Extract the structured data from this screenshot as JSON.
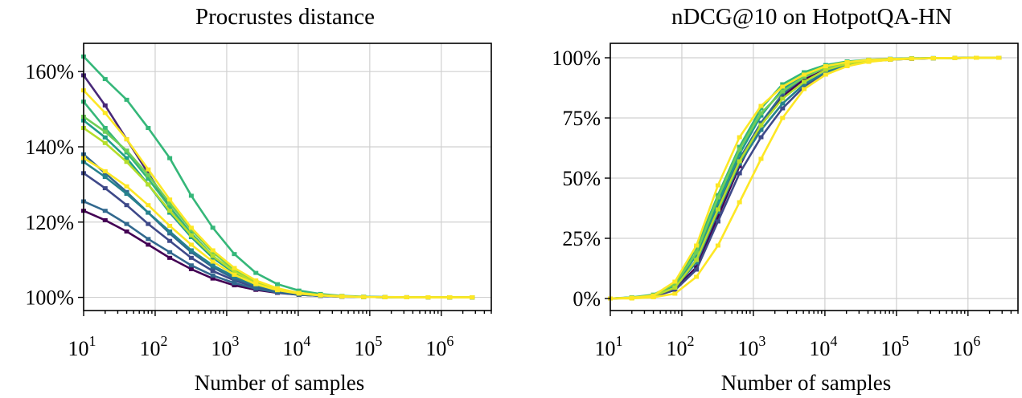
{
  "chart_data": [
    {
      "type": "line",
      "title": "Procrustes distance",
      "xlabel": "Number of samples",
      "ylabel": "",
      "xscale": "log",
      "xlim": [
        10,
        5000000
      ],
      "ylim": [
        0.965,
        1.675
      ],
      "xticks": [
        {
          "base": "10",
          "exp": "1",
          "value": 10
        },
        {
          "base": "10",
          "exp": "2",
          "value": 100
        },
        {
          "base": "10",
          "exp": "3",
          "value": 1000
        },
        {
          "base": "10",
          "exp": "4",
          "value": 10000
        },
        {
          "base": "10",
          "exp": "5",
          "value": 100000
        },
        {
          "base": "10",
          "exp": "6",
          "value": 1000000
        }
      ],
      "yticks": [
        {
          "label": "100%",
          "value": 1.0
        },
        {
          "label": "120%",
          "value": 1.2
        },
        {
          "label": "140%",
          "value": 1.4
        },
        {
          "label": "160%",
          "value": 1.6
        }
      ],
      "grid": true,
      "x": [
        10,
        20,
        40,
        80,
        160,
        320,
        640,
        1280,
        2560,
        5120,
        10240,
        20480,
        40960,
        81920,
        163840,
        327680,
        655360,
        1310720,
        2700000
      ],
      "series": [
        {
          "color": "#440154",
          "values": [
            1.23,
            1.205,
            1.175,
            1.14,
            1.105,
            1.075,
            1.05,
            1.032,
            1.02,
            1.012,
            1.007,
            1.004,
            1.002,
            1.001,
            1.0005,
            1.0002,
            1.0001,
            1.0,
            1.0
          ]
        },
        {
          "color": "#482878",
          "values": [
            1.59,
            1.51,
            1.42,
            1.33,
            1.24,
            1.17,
            1.11,
            1.065,
            1.035,
            1.018,
            1.009,
            1.005,
            1.002,
            1.001,
            1.0005,
            1.0002,
            1.0001,
            1.0,
            1.0
          ]
        },
        {
          "color": "#3e4989",
          "values": [
            1.33,
            1.29,
            1.245,
            1.195,
            1.15,
            1.105,
            1.07,
            1.045,
            1.027,
            1.015,
            1.008,
            1.004,
            1.002,
            1.001,
            1.0005,
            1.0002,
            1.0001,
            1.0,
            1.0
          ]
        },
        {
          "color": "#31688e",
          "values": [
            1.255,
            1.23,
            1.195,
            1.155,
            1.12,
            1.085,
            1.058,
            1.038,
            1.023,
            1.013,
            1.007,
            1.004,
            1.002,
            1.001,
            1.0005,
            1.0002,
            1.0001,
            1.0,
            1.0
          ]
        },
        {
          "color": "#31688e",
          "values": [
            1.38,
            1.33,
            1.28,
            1.225,
            1.17,
            1.12,
            1.08,
            1.05,
            1.03,
            1.017,
            1.009,
            1.005,
            1.002,
            1.001,
            1.0005,
            1.0002,
            1.0001,
            1.0,
            1.0
          ]
        },
        {
          "color": "#26828e",
          "values": [
            1.36,
            1.32,
            1.275,
            1.225,
            1.175,
            1.125,
            1.085,
            1.055,
            1.033,
            1.019,
            1.01,
            1.005,
            1.003,
            1.001,
            1.0005,
            1.0002,
            1.0001,
            1.0,
            1.0
          ]
        },
        {
          "color": "#1f9e89",
          "values": [
            1.47,
            1.425,
            1.37,
            1.3,
            1.225,
            1.16,
            1.105,
            1.065,
            1.037,
            1.02,
            1.01,
            1.005,
            1.003,
            1.001,
            1.0005,
            1.0002,
            1.0001,
            1.0,
            1.0
          ]
        },
        {
          "color": "#35b779",
          "values": [
            1.52,
            1.45,
            1.385,
            1.315,
            1.24,
            1.17,
            1.11,
            1.068,
            1.038,
            1.021,
            1.011,
            1.006,
            1.003,
            1.001,
            1.0005,
            1.0002,
            1.0001,
            1.0,
            1.0
          ]
        },
        {
          "color": "#35b779",
          "values": [
            1.64,
            1.58,
            1.525,
            1.45,
            1.37,
            1.27,
            1.185,
            1.115,
            1.065,
            1.035,
            1.018,
            1.009,
            1.004,
            1.002,
            1.001,
            1.0003,
            1.0001,
            1.0,
            1.0
          ]
        },
        {
          "color": "#6ece58",
          "values": [
            1.48,
            1.44,
            1.39,
            1.325,
            1.25,
            1.18,
            1.12,
            1.073,
            1.041,
            1.022,
            1.011,
            1.006,
            1.003,
            1.001,
            1.0005,
            1.0002,
            1.0001,
            1.0,
            1.0
          ]
        },
        {
          "color": "#b5de2b",
          "values": [
            1.45,
            1.41,
            1.36,
            1.3,
            1.23,
            1.165,
            1.11,
            1.068,
            1.039,
            1.021,
            1.011,
            1.006,
            1.003,
            1.001,
            1.0005,
            1.0002,
            1.0001,
            1.0,
            1.0
          ]
        },
        {
          "color": "#fde725",
          "values": [
            1.55,
            1.49,
            1.42,
            1.34,
            1.26,
            1.185,
            1.125,
            1.078,
            1.045,
            1.024,
            1.012,
            1.006,
            1.003,
            1.001,
            1.0005,
            1.0002,
            1.0001,
            1.0,
            1.0
          ]
        },
        {
          "color": "#fde725",
          "values": [
            1.37,
            1.335,
            1.295,
            1.245,
            1.19,
            1.14,
            1.095,
            1.06,
            1.035,
            1.019,
            1.01,
            1.005,
            1.002,
            1.001,
            1.0005,
            1.0002,
            1.0001,
            1.0,
            1.0
          ]
        }
      ]
    },
    {
      "type": "line",
      "title": "nDCG@10 on HotpotQA-HN",
      "xlabel": "Number of samples",
      "ylabel": "",
      "xscale": "log",
      "xlim": [
        10,
        5000000
      ],
      "ylim": [
        -0.05,
        1.06
      ],
      "xticks": [
        {
          "base": "10",
          "exp": "1",
          "value": 10
        },
        {
          "base": "10",
          "exp": "2",
          "value": 100
        },
        {
          "base": "10",
          "exp": "3",
          "value": 1000
        },
        {
          "base": "10",
          "exp": "4",
          "value": 10000
        },
        {
          "base": "10",
          "exp": "5",
          "value": 100000
        },
        {
          "base": "10",
          "exp": "6",
          "value": 1000000
        }
      ],
      "yticks": [
        {
          "label": "0%",
          "value": 0.0
        },
        {
          "label": "25%",
          "value": 0.25
        },
        {
          "label": "50%",
          "value": 0.5
        },
        {
          "label": "75%",
          "value": 0.75
        },
        {
          "label": "100%",
          "value": 1.0
        }
      ],
      "grid": true,
      "x": [
        10,
        20,
        40,
        80,
        160,
        320,
        640,
        1280,
        2560,
        5120,
        10240,
        20480,
        40960,
        81920,
        163840,
        327680,
        655360,
        1310720,
        2700000
      ],
      "series": [
        {
          "color": "#440154",
          "values": [
            0.0,
            0.003,
            0.01,
            0.04,
            0.13,
            0.34,
            0.55,
            0.72,
            0.84,
            0.91,
            0.95,
            0.975,
            0.988,
            0.993,
            0.996,
            0.998,
            0.999,
            1.0,
            1.0
          ]
        },
        {
          "color": "#3e4989",
          "values": [
            0.0,
            0.002,
            0.008,
            0.035,
            0.12,
            0.32,
            0.52,
            0.67,
            0.79,
            0.88,
            0.94,
            0.97,
            0.985,
            0.992,
            0.996,
            0.998,
            0.999,
            1.0,
            1.0
          ]
        },
        {
          "color": "#31688e",
          "values": [
            0.0,
            0.004,
            0.012,
            0.05,
            0.16,
            0.38,
            0.58,
            0.73,
            0.85,
            0.92,
            0.96,
            0.98,
            0.99,
            0.995,
            0.997,
            0.998,
            0.999,
            1.0,
            1.0
          ]
        },
        {
          "color": "#26828e",
          "values": [
            0.0,
            0.003,
            0.011,
            0.045,
            0.15,
            0.36,
            0.56,
            0.7,
            0.81,
            0.89,
            0.94,
            0.97,
            0.985,
            0.992,
            0.996,
            0.998,
            0.999,
            1.0,
            1.0
          ]
        },
        {
          "color": "#1f9e89",
          "values": [
            0.0,
            0.004,
            0.013,
            0.055,
            0.18,
            0.4,
            0.6,
            0.76,
            0.87,
            0.93,
            0.965,
            0.983,
            0.99,
            0.994,
            0.997,
            0.998,
            0.999,
            1.0,
            1.0
          ]
        },
        {
          "color": "#35b779",
          "values": [
            0.0,
            0.005,
            0.016,
            0.06,
            0.21,
            0.43,
            0.63,
            0.79,
            0.89,
            0.94,
            0.97,
            0.985,
            0.992,
            0.996,
            0.998,
            0.999,
            0.999,
            1.0,
            1.0
          ]
        },
        {
          "color": "#6ece58",
          "values": [
            0.0,
            0.004,
            0.014,
            0.06,
            0.19,
            0.42,
            0.62,
            0.77,
            0.86,
            0.92,
            0.96,
            0.98,
            0.99,
            0.995,
            0.997,
            0.998,
            0.999,
            1.0,
            1.0
          ]
        },
        {
          "color": "#b5de2b",
          "values": [
            0.0,
            0.003,
            0.01,
            0.045,
            0.16,
            0.37,
            0.57,
            0.72,
            0.83,
            0.9,
            0.95,
            0.975,
            0.988,
            0.994,
            0.997,
            0.998,
            0.999,
            1.0,
            1.0
          ]
        },
        {
          "color": "#fde725",
          "values": [
            0.0,
            0.003,
            0.012,
            0.07,
            0.22,
            0.47,
            0.67,
            0.8,
            0.88,
            0.93,
            0.965,
            0.982,
            0.991,
            0.995,
            0.997,
            0.998,
            0.999,
            1.0,
            1.0
          ]
        },
        {
          "color": "#fde725",
          "values": [
            0.0,
            0.0,
            0.005,
            0.02,
            0.09,
            0.22,
            0.4,
            0.58,
            0.75,
            0.87,
            0.93,
            0.965,
            0.983,
            0.992,
            0.996,
            0.998,
            0.999,
            1.0,
            1.0
          ]
        }
      ]
    }
  ]
}
